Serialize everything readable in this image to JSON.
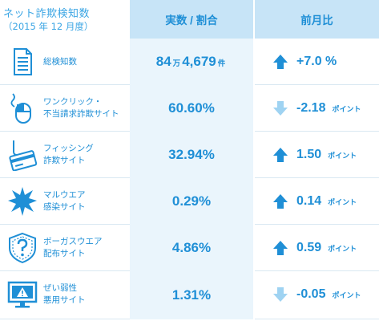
{
  "header": {
    "title": "ネット詐欺検知数",
    "subtitle": "（2015 年 12 月度）",
    "col_value": "実数 / 割合",
    "col_compare": "前月比"
  },
  "rows": [
    {
      "label_lines": [
        "総検知数"
      ],
      "value_main": "84",
      "value_unit1": "万",
      "value_main2": "4,679",
      "value_unit2": "件",
      "change": "+7.0 %",
      "change_unit": "",
      "direction": "up",
      "icon": "document-icon"
    },
    {
      "label_lines": [
        "ワンクリック・",
        "不当請求詐欺サイト"
      ],
      "value_main": "60.60%",
      "change": "-2.18",
      "change_unit": "ポイント",
      "direction": "down",
      "icon": "mouse-icon"
    },
    {
      "label_lines": [
        "フィッシング",
        "詐欺サイト"
      ],
      "value_main": "32.94%",
      "change": "1.50",
      "change_unit": "ポイント",
      "direction": "up",
      "icon": "fishing-card-icon"
    },
    {
      "label_lines": [
        "マルウエア",
        "感染サイト"
      ],
      "value_main": "0.29%",
      "change": "0.14",
      "change_unit": "ポイント",
      "direction": "up",
      "icon": "malware-burst-icon"
    },
    {
      "label_lines": [
        "ボーガスウエア",
        "配布サイト"
      ],
      "value_main": "4.86%",
      "change": "0.59",
      "change_unit": "ポイント",
      "direction": "up",
      "icon": "shield-question-icon"
    },
    {
      "label_lines": [
        "ぜい弱性",
        "悪用サイト"
      ],
      "value_main": "1.31%",
      "change": "-0.05",
      "change_unit": "ポイント",
      "direction": "down",
      "icon": "monitor-alert-icon"
    }
  ],
  "colors": {
    "text": "#1f8fd6",
    "header_bg": "#c7e4f7",
    "value_bg": "#eaf5fc",
    "arrow_up": "#1f8fd6",
    "arrow_down": "#9fd3f2"
  }
}
